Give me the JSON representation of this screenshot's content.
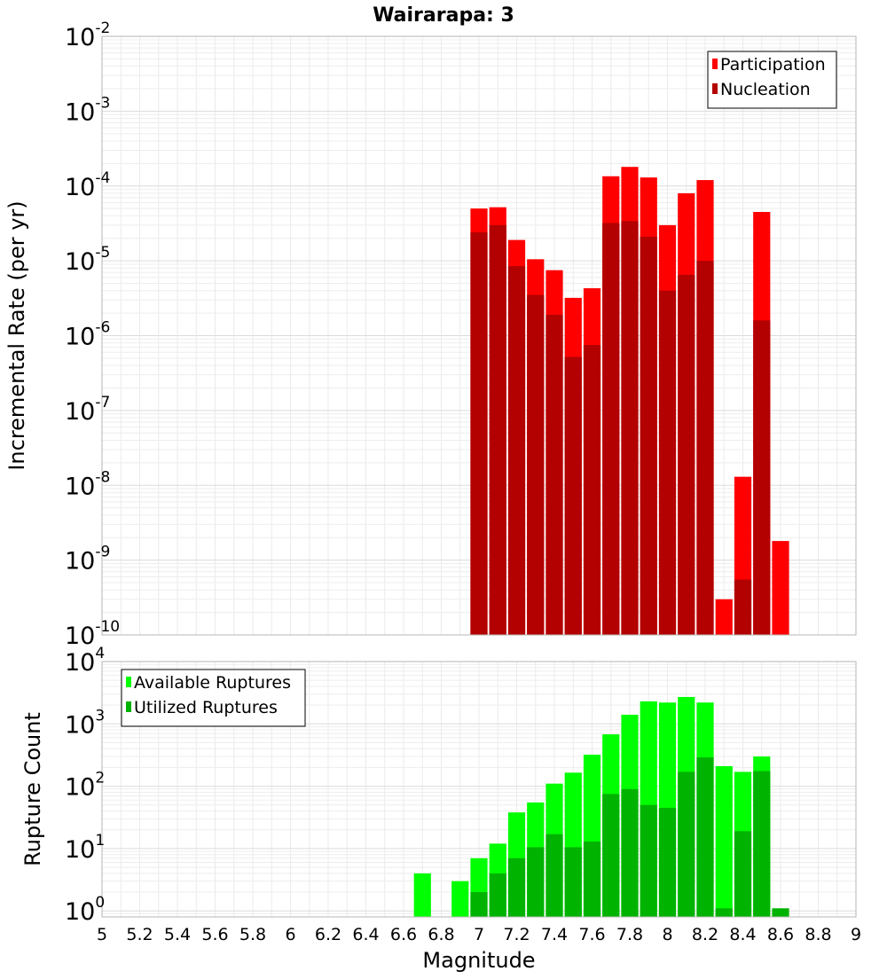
{
  "chart_data": [
    {
      "type": "bar",
      "title": "Wairarapa: 3",
      "xlabel": "",
      "ylabel": "Incremental Rate (per yr)",
      "yscale": "log",
      "ylim": [
        1e-10,
        0.01
      ],
      "ytick_labels": [
        {
          "base": "10",
          "exp": "-10"
        },
        {
          "base": "10",
          "exp": "-9"
        },
        {
          "base": "10",
          "exp": "-8"
        },
        {
          "base": "10",
          "exp": "-7"
        },
        {
          "base": "10",
          "exp": "-6"
        },
        {
          "base": "10",
          "exp": "-5"
        },
        {
          "base": "10",
          "exp": "-4"
        },
        {
          "base": "10",
          "exp": "-3"
        },
        {
          "base": "10",
          "exp": "-2"
        }
      ],
      "xlim": [
        5,
        9
      ],
      "grid": true,
      "legend_position": "top-right",
      "x": [
        7.0,
        7.1,
        7.2,
        7.3,
        7.4,
        7.5,
        7.6,
        7.7,
        7.8,
        7.9,
        8.0,
        8.1,
        8.2,
        8.3,
        8.4,
        8.5,
        8.6
      ],
      "series": [
        {
          "name": "Participation",
          "color": "#ff0000",
          "values": [
            5e-05,
            5.2e-05,
            1.9e-05,
            1.05e-05,
            7.5e-06,
            3.2e-06,
            4.3e-06,
            0.000135,
            0.00018,
            0.00013,
            3e-05,
            8e-05,
            0.00012,
            3e-10,
            1.3e-08,
            4.5e-05,
            1.8e-09
          ]
        },
        {
          "name": "Nucleation",
          "color": "#b30000",
          "values": [
            2.4e-05,
            3e-05,
            8.5e-06,
            3.5e-06,
            1.9e-06,
            5.2e-07,
            7.5e-07,
            3.2e-05,
            3.4e-05,
            2.1e-05,
            4e-06,
            6.5e-06,
            1e-05,
            null,
            5.5e-10,
            1.6e-06,
            null
          ]
        }
      ]
    },
    {
      "type": "bar",
      "title": "",
      "xlabel": "Magnitude",
      "ylabel": "Rupture Count",
      "yscale": "log",
      "ylim": [
        0.8,
        10000
      ],
      "ytick_labels": [
        {
          "base": "10",
          "exp": "0"
        },
        {
          "base": "10",
          "exp": "1"
        },
        {
          "base": "10",
          "exp": "2"
        },
        {
          "base": "10",
          "exp": "3"
        },
        {
          "base": "10",
          "exp": "4"
        }
      ],
      "xlim": [
        5,
        9
      ],
      "xtick_labels": [
        "5",
        "5.2",
        "5.4",
        "5.6",
        "5.8",
        "6",
        "6.2",
        "6.4",
        "6.6",
        "6.8",
        "7",
        "7.2",
        "7.4",
        "7.6",
        "7.8",
        "8",
        "8.2",
        "8.4",
        "8.6",
        "8.8",
        "9"
      ],
      "grid": true,
      "legend_position": "top-left",
      "x": [
        6.7,
        6.9,
        7.0,
        7.1,
        7.2,
        7.3,
        7.4,
        7.5,
        7.6,
        7.7,
        7.8,
        7.9,
        8.0,
        8.1,
        8.2,
        8.3,
        8.4,
        8.5,
        8.6
      ],
      "series": [
        {
          "name": "Available Ruptures",
          "color": "#00ff00",
          "values": [
            4,
            3,
            7,
            12,
            38,
            55,
            110,
            165,
            320,
            680,
            1400,
            2300,
            2200,
            2700,
            2200,
            210,
            170,
            300,
            null
          ]
        },
        {
          "name": "Utilized Ruptures",
          "color": "#00b300",
          "values": [
            null,
            null,
            2,
            4,
            7,
            10.5,
            17,
            10.5,
            13,
            75,
            90,
            50,
            45,
            170,
            290,
            1.1,
            19,
            175,
            1.1
          ]
        }
      ]
    }
  ]
}
